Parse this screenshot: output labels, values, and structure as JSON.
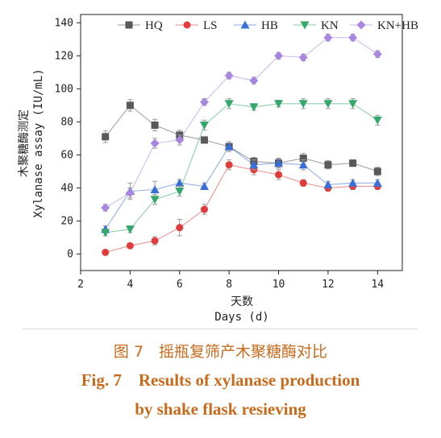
{
  "caption": {
    "cn": "图 7　摇瓶复筛产木聚糖酶对比",
    "en_line1": "Fig. 7　Results of xylanase production",
    "en_line2": "by shake flask resieving"
  },
  "chart_data": {
    "type": "line",
    "title": "",
    "xlabel_cn": "天数",
    "xlabel": "Days (d)",
    "ylabel_cn": "木聚糖酶测定",
    "ylabel": "Xylanase assay (IU/mL)",
    "xlim": [
      2,
      15
    ],
    "ylim": [
      -10,
      145
    ],
    "xticks": [
      2,
      4,
      6,
      8,
      10,
      12,
      14
    ],
    "yticks": [
      0,
      20,
      40,
      60,
      80,
      100,
      120,
      140
    ],
    "grid": false,
    "legend_position": "top",
    "x": [
      3,
      4,
      5,
      6,
      7,
      8,
      9,
      10,
      11,
      12,
      13,
      14
    ],
    "series": [
      {
        "name": "HQ",
        "color": "#595959",
        "marker": "square",
        "values": [
          71,
          90,
          78,
          72,
          69,
          65,
          56,
          55,
          58,
          54,
          55,
          50
        ],
        "errors": [
          3.5,
          3.5,
          3.5,
          3,
          2,
          2,
          2.5,
          2.5,
          3,
          2.5,
          2,
          2.5
        ]
      },
      {
        "name": "LS",
        "color": "#e03c3c",
        "marker": "circle",
        "values": [
          1,
          5,
          8,
          16,
          27,
          54,
          51,
          48,
          43,
          40,
          41,
          41
        ],
        "errors": [
          1,
          1.5,
          2.5,
          5,
          3,
          3,
          3,
          3,
          2,
          2,
          2,
          2
        ]
      },
      {
        "name": "HB",
        "color": "#3a6fd8",
        "marker": "triangle-up",
        "values": [
          15,
          38,
          39,
          43,
          41,
          65,
          54,
          55,
          54,
          42,
          43,
          43
        ],
        "errors": [
          2,
          5,
          5,
          2,
          2,
          3,
          3,
          3,
          3,
          2,
          2,
          2
        ]
      },
      {
        "name": "KN",
        "color": "#34a86a",
        "marker": "triangle-down",
        "values": [
          13,
          15,
          33,
          38,
          78,
          91,
          89,
          91,
          91,
          91,
          91,
          81
        ],
        "errors": [
          2,
          2,
          3,
          3,
          3,
          3,
          2,
          2,
          3,
          3,
          3,
          3
        ]
      },
      {
        "name": "KN+HB",
        "color": "#a886e0",
        "marker": "diamond",
        "values": [
          28,
          37,
          67,
          69,
          92,
          108,
          105,
          120,
          119,
          131,
          131,
          121
        ],
        "errors": [
          2,
          3,
          3,
          3,
          2,
          2,
          2,
          2,
          2,
          2,
          2,
          2
        ]
      }
    ]
  }
}
